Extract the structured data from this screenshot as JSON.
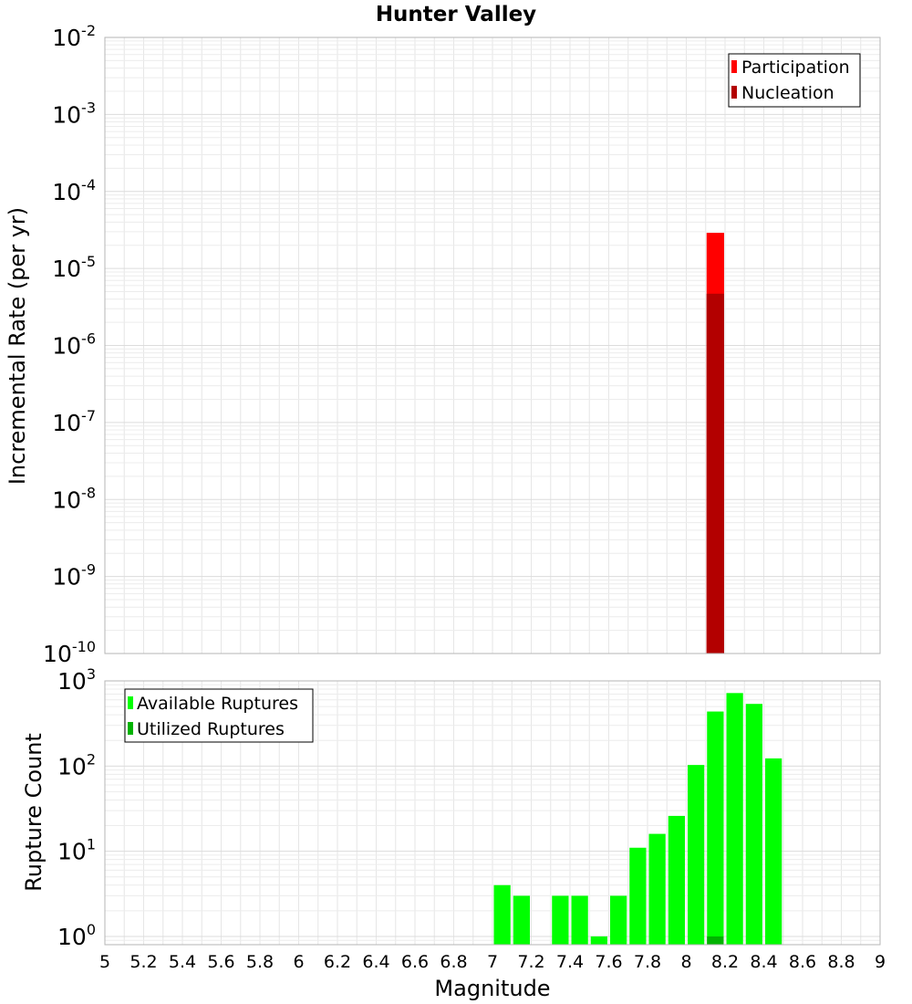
{
  "chart_data": [
    {
      "type": "bar",
      "title": "Hunter Valley",
      "xlabel": "",
      "ylabel": "Incremental Rate (per yr)",
      "yscale": "log",
      "ylim": [
        1e-10,
        0.01
      ],
      "xlim": [
        5,
        9
      ],
      "grid": true,
      "legend_position": "top-right",
      "y_ticks": [
        {
          "base": "10",
          "exp": "-2",
          "value": 0.01
        },
        {
          "base": "10",
          "exp": "-3",
          "value": 0.001
        },
        {
          "base": "10",
          "exp": "-4",
          "value": 0.0001
        },
        {
          "base": "10",
          "exp": "-5",
          "value": 1e-05
        },
        {
          "base": "10",
          "exp": "-6",
          "value": 1e-06
        },
        {
          "base": "10",
          "exp": "-7",
          "value": 1e-07
        },
        {
          "base": "10",
          "exp": "-8",
          "value": 1e-08
        },
        {
          "base": "10",
          "exp": "-9",
          "value": 1e-09
        },
        {
          "base": "10",
          "exp": "-10",
          "value": 1e-10
        }
      ],
      "series": [
        {
          "name": "Participation",
          "color": "#ff0000",
          "points": [
            {
              "x": 8.15,
              "y": 2.9e-05
            }
          ]
        },
        {
          "name": "Nucleation",
          "color": "#b30000",
          "points": [
            {
              "x": 8.15,
              "y": 4.7e-06
            }
          ]
        }
      ]
    },
    {
      "type": "bar",
      "title": "",
      "xlabel": "Magnitude",
      "ylabel": "Rupture Count",
      "yscale": "log",
      "ylim": [
        0.8,
        1000
      ],
      "xlim": [
        5,
        9
      ],
      "grid": true,
      "legend_position": "top-left",
      "x_ticks": [
        "5",
        "5.2",
        "5.4",
        "5.6",
        "5.8",
        "6",
        "6.2",
        "6.4",
        "6.6",
        "6.8",
        "7",
        "7.2",
        "7.4",
        "7.6",
        "7.8",
        "8",
        "8.2",
        "8.4",
        "8.6",
        "8.8",
        "9"
      ],
      "y_ticks": [
        {
          "base": "10",
          "exp": "3",
          "value": 1000
        },
        {
          "base": "10",
          "exp": "2",
          "value": 100
        },
        {
          "base": "10",
          "exp": "1",
          "value": 10
        },
        {
          "base": "10",
          "exp": "0",
          "value": 1
        }
      ],
      "series": [
        {
          "name": "Available Ruptures",
          "color": "#00ff00",
          "points": [
            {
              "x": 7.05,
              "y": 4
            },
            {
              "x": 7.15,
              "y": 3
            },
            {
              "x": 7.35,
              "y": 3
            },
            {
              "x": 7.45,
              "y": 3
            },
            {
              "x": 7.55,
              "y": 1
            },
            {
              "x": 7.65,
              "y": 3
            },
            {
              "x": 7.75,
              "y": 11
            },
            {
              "x": 7.85,
              "y": 16
            },
            {
              "x": 7.95,
              "y": 26
            },
            {
              "x": 8.05,
              "y": 103
            },
            {
              "x": 8.15,
              "y": 437
            },
            {
              "x": 8.25,
              "y": 720
            },
            {
              "x": 8.35,
              "y": 537
            },
            {
              "x": 8.45,
              "y": 123
            }
          ]
        },
        {
          "name": "Utilized Ruptures",
          "color": "#00b300",
          "points": [
            {
              "x": 8.15,
              "y": 1
            }
          ]
        }
      ]
    }
  ]
}
